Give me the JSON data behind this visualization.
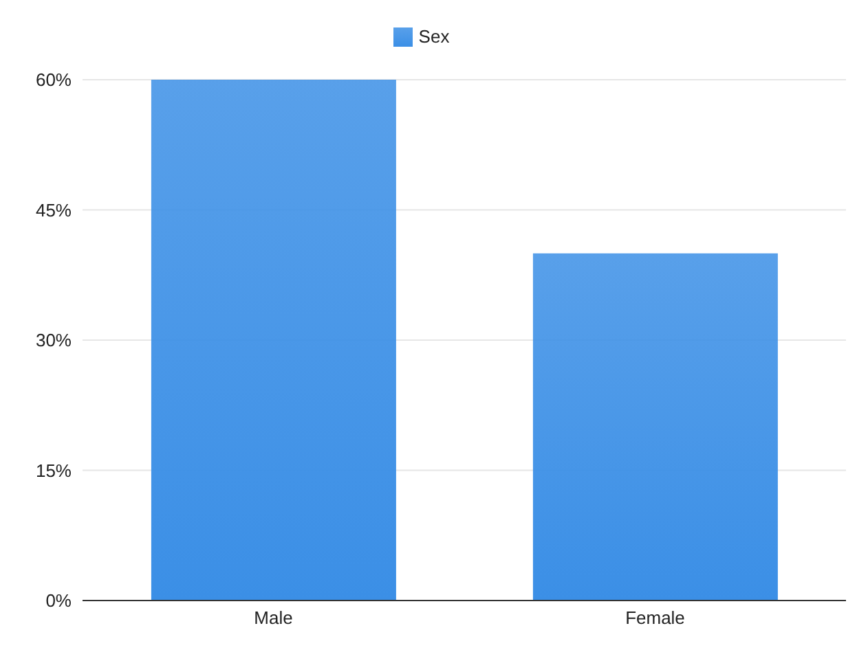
{
  "chart_data": {
    "type": "bar",
    "categories": [
      "Male",
      "Female"
    ],
    "series": [
      {
        "name": "Sex",
        "color": "#3b8fe6",
        "values": [
          60,
          40
        ]
      }
    ],
    "ylim": [
      0,
      60
    ],
    "yticks": [
      {
        "value": 0,
        "label": "0%"
      },
      {
        "value": 15,
        "label": "15%"
      },
      {
        "value": 30,
        "label": "30%"
      },
      {
        "value": 45,
        "label": "45%"
      },
      {
        "value": 60,
        "label": "60%"
      }
    ],
    "grid": "y",
    "legend": "top"
  }
}
